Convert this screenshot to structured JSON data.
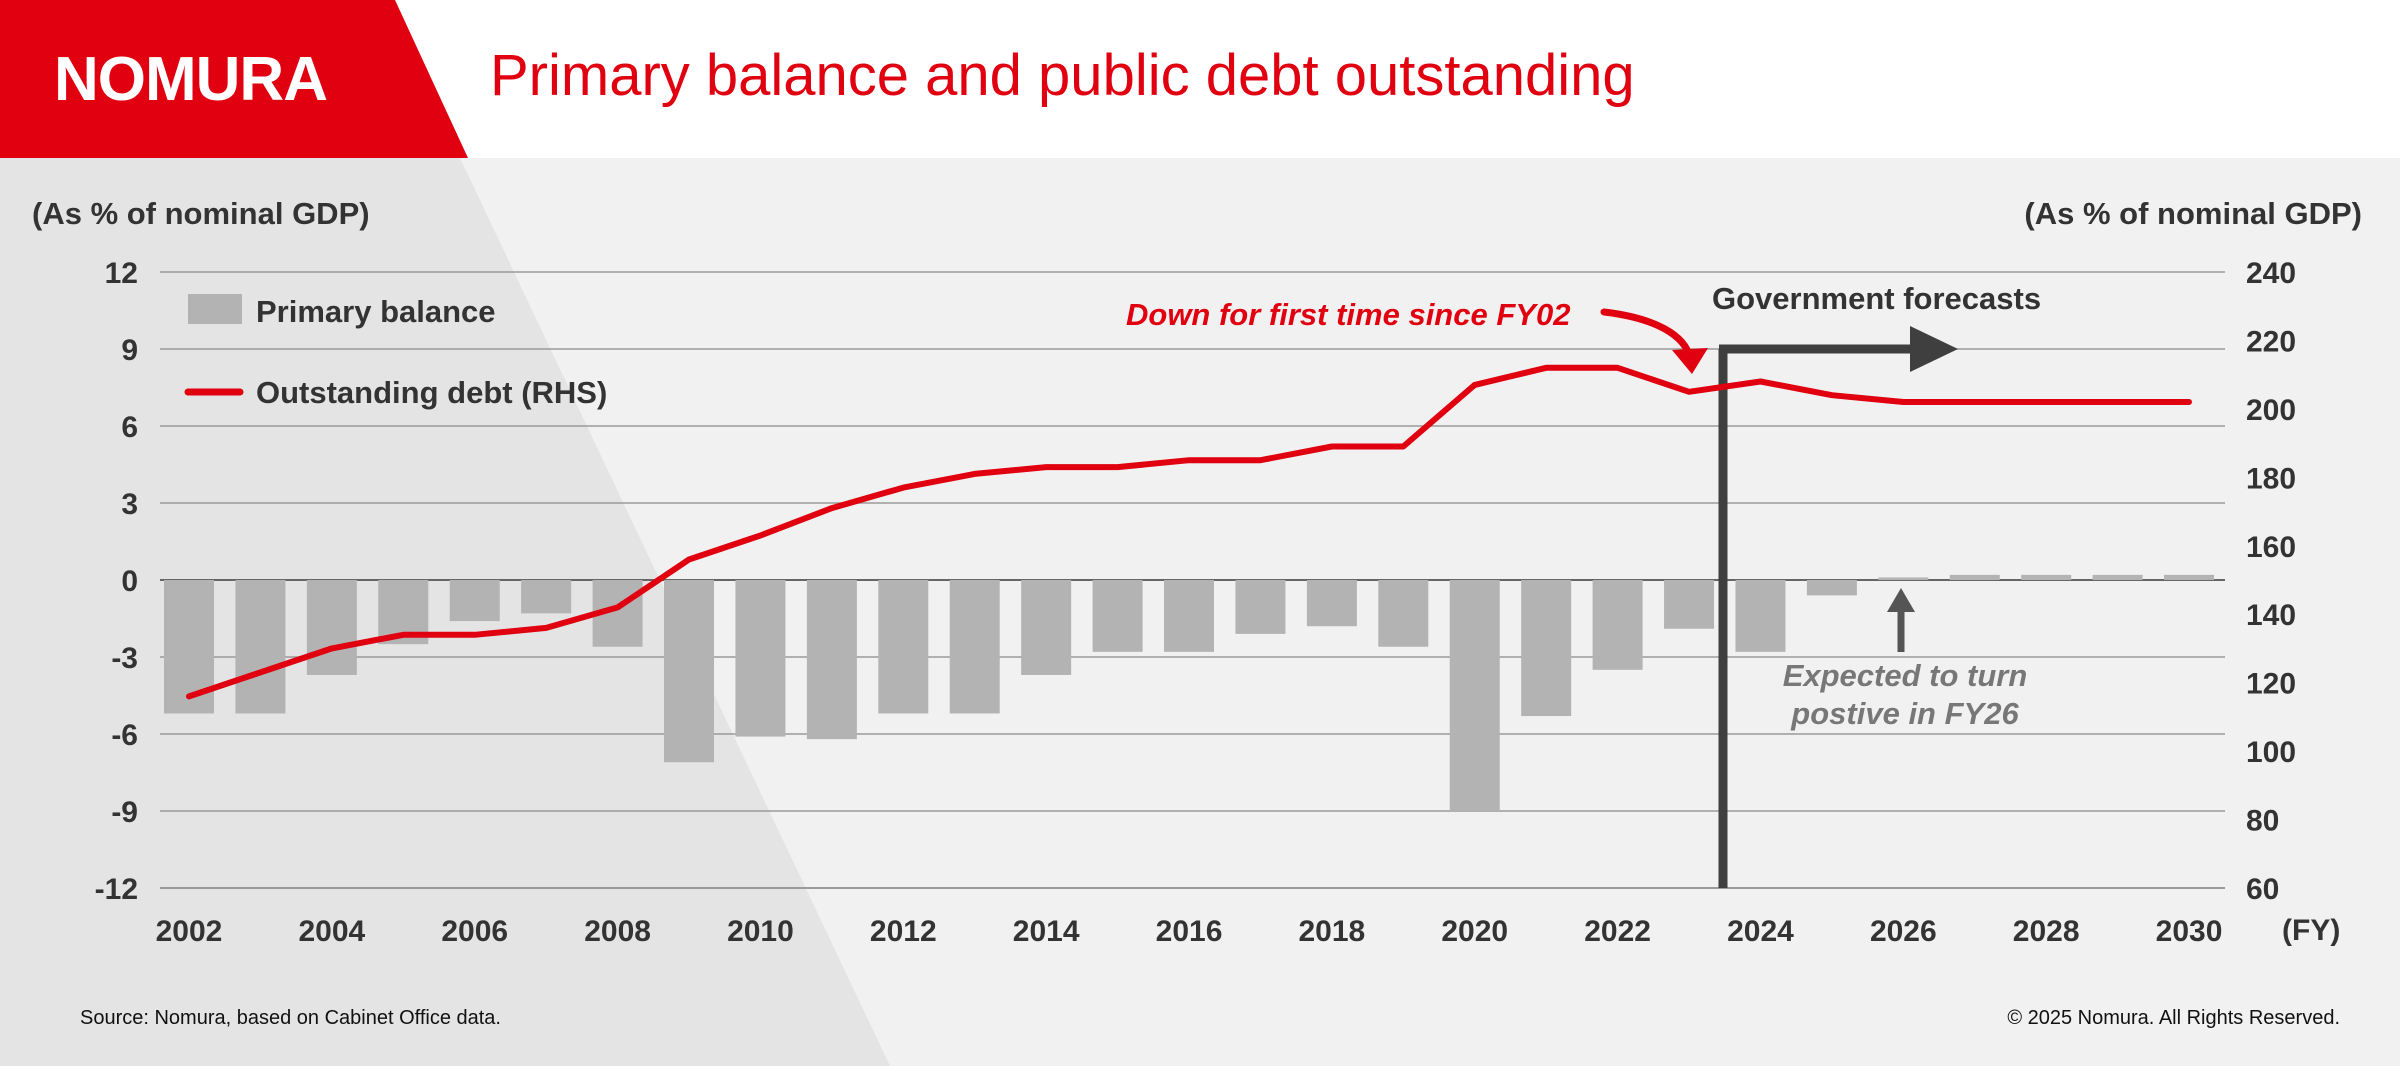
{
  "header": {
    "logo_text": "NOMURA",
    "title": "Primary balance and public debt outstanding"
  },
  "colors": {
    "brand_red": "#e0000f",
    "bar_gray": "#b3b3b3",
    "forecast_arrow": "#3f3f3f",
    "annotation_gray": "#777777"
  },
  "annotations": {
    "red_note": "Down for first time since FY02",
    "forecast_label": "Government forecasts",
    "gray_note_line1": "Expected to turn",
    "gray_note_line2": "postive in FY26"
  },
  "footer": {
    "source": "Source: Nomura, based on Cabinet Office data.",
    "copyright": "© 2025 Nomura. All Rights Reserved."
  },
  "chart_data": {
    "type": "bar+line",
    "left_axis_label": "(As % of nominal GDP)",
    "right_axis_label": "(As % of nominal GDP)",
    "x_unit_label": "(FY)",
    "x_tick_labels": [
      "2002",
      "2004",
      "2006",
      "2008",
      "2010",
      "2012",
      "2014",
      "2016",
      "2018",
      "2020",
      "2022",
      "2024",
      "2026",
      "2028",
      "2030"
    ],
    "left_ticks": [
      "12",
      "9",
      "6",
      "3",
      "0",
      "-3",
      "-6",
      "-9",
      "-12"
    ],
    "right_ticks": [
      "240",
      "220",
      "200",
      "180",
      "160",
      "140",
      "120",
      "100",
      "80",
      "60"
    ],
    "left_ylim": [
      -12,
      12
    ],
    "right_ylim": [
      60,
      240
    ],
    "grid": true,
    "legend_position": "top-left",
    "categories": [
      2002,
      2003,
      2004,
      2005,
      2006,
      2007,
      2008,
      2009,
      2010,
      2011,
      2012,
      2013,
      2014,
      2015,
      2016,
      2017,
      2018,
      2019,
      2020,
      2021,
      2022,
      2023,
      2024,
      2025,
      2026,
      2027,
      2028,
      2029,
      2030
    ],
    "series": [
      {
        "name": "Primary balance",
        "kind": "bar",
        "axis": "left",
        "values": [
          -5.2,
          -5.2,
          -3.7,
          -2.5,
          -1.6,
          -1.3,
          -2.6,
          -7.1,
          -6.1,
          -6.2,
          -5.2,
          -5.2,
          -3.7,
          -2.8,
          -2.8,
          -2.1,
          -1.8,
          -2.6,
          -9.0,
          -5.3,
          -3.5,
          -1.9,
          -2.8,
          -0.6,
          0.1,
          0.2,
          0.2,
          0.2,
          0.2
        ]
      },
      {
        "name": "Outstanding debt (RHS)",
        "kind": "line",
        "axis": "right",
        "values": [
          116,
          123,
          130,
          134,
          134,
          136,
          142,
          156,
          163,
          171,
          177,
          181,
          183,
          183,
          185,
          185,
          189,
          189,
          207,
          212,
          212,
          205,
          208,
          204,
          202,
          202,
          202,
          202,
          202
        ]
      }
    ]
  }
}
